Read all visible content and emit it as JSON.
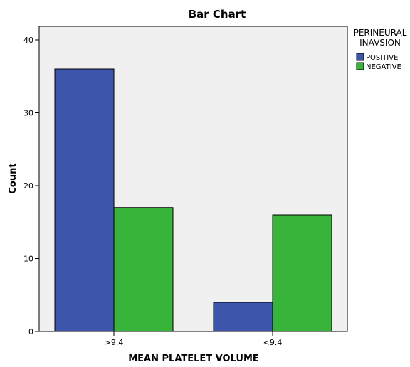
{
  "chart_data": {
    "type": "bar",
    "title": "Bar Chart",
    "xlabel": "MEAN PLATELET VOLUME",
    "ylabel": "Count",
    "categories": [
      ">9.4",
      "<9.4"
    ],
    "series": [
      {
        "name": "POSITIVE",
        "values": [
          36,
          4
        ],
        "color": "#3d56ab"
      },
      {
        "name": "NEGATIVE",
        "values": [
          17,
          16
        ],
        "color": "#37b439"
      }
    ],
    "ylim": [
      0,
      40
    ],
    "yticks": [
      0,
      10,
      20,
      30,
      40
    ],
    "legend": {
      "title": [
        "PERINEURAL",
        "INAVSION"
      ],
      "placement": "top-right"
    },
    "grid": false,
    "plot_background": "#f0f0f0"
  }
}
